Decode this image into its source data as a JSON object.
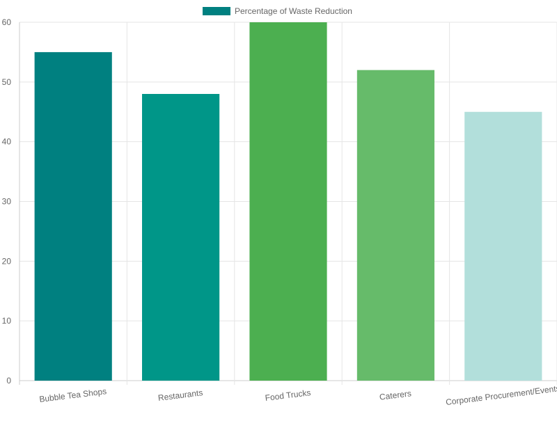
{
  "chart_data": {
    "type": "bar",
    "legend": {
      "label": "Percentage of Waste Reduction",
      "placement": "top-center",
      "swatch_color": "#008080"
    },
    "categories": [
      "Bubble Tea Shops",
      "Restaurants",
      "Food Trucks",
      "Caterers",
      "Corporate Procurement/Events"
    ],
    "series": [
      {
        "name": "Percentage of Waste Reduction",
        "values": [
          55,
          48,
          60,
          52,
          45
        ],
        "colors": [
          "#008080",
          "#009688",
          "#4CAF50",
          "#66BB6A",
          "#B2DFDB"
        ]
      }
    ],
    "ylim": [
      0,
      60
    ],
    "yticks": [
      0,
      10,
      20,
      30,
      40,
      50,
      60
    ],
    "grid": true,
    "xlabel": "",
    "ylabel": "",
    "title": ""
  }
}
